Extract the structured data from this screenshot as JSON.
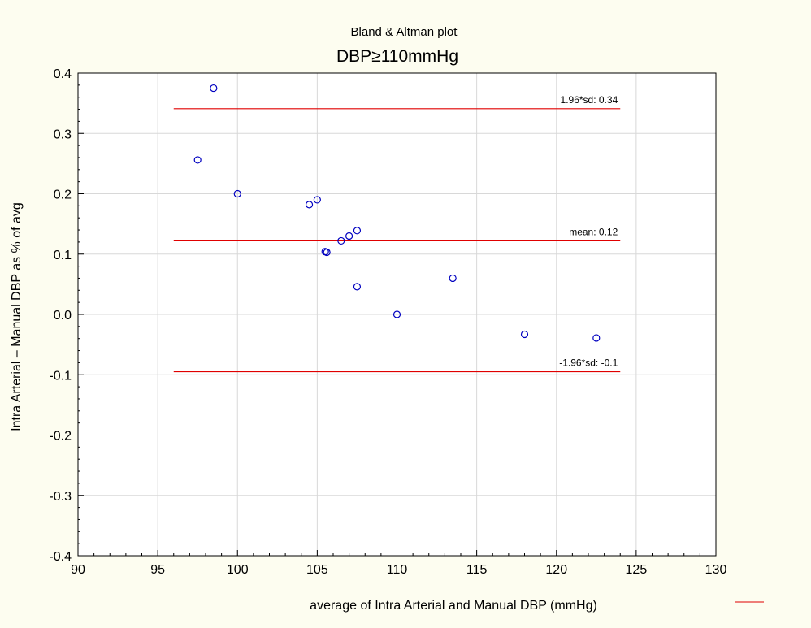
{
  "chart_data": {
    "type": "scatter",
    "title": "Bland & Altman plot",
    "subtitle": "DBP≥110mmHg",
    "xlabel": "average of Intra Arterial and Manual DBP (mmHg)",
    "ylabel": "Intra Arterial – Manual DBP as % of avg",
    "xlim": [
      90,
      130
    ],
    "ylim": [
      -0.4,
      0.4
    ],
    "xticks": [
      "90",
      "95",
      "100",
      "105",
      "110",
      "115",
      "120",
      "125",
      "130"
    ],
    "yticks": [
      "0.4",
      "0.3",
      "0.2",
      "0.1",
      "0.0",
      "-0.1",
      "-0.2",
      "-0.3",
      "-0.4"
    ],
    "grid": true,
    "points": [
      {
        "x": 97.5,
        "y": 0.256
      },
      {
        "x": 98.5,
        "y": 0.375
      },
      {
        "x": 100.0,
        "y": 0.2
      },
      {
        "x": 104.5,
        "y": 0.182
      },
      {
        "x": 105.0,
        "y": 0.19
      },
      {
        "x": 105.5,
        "y": 0.104
      },
      {
        "x": 105.6,
        "y": 0.103
      },
      {
        "x": 106.5,
        "y": 0.122
      },
      {
        "x": 107.0,
        "y": 0.13
      },
      {
        "x": 107.5,
        "y": 0.139
      },
      {
        "x": 107.5,
        "y": 0.046
      },
      {
        "x": 110.0,
        "y": 0.0
      },
      {
        "x": 113.5,
        "y": 0.06
      },
      {
        "x": 118.0,
        "y": -0.033
      },
      {
        "x": 122.5,
        "y": -0.039
      }
    ],
    "reference_lines": [
      {
        "label": "1.96*sd: 0.34",
        "y": 0.341,
        "x_start": 96,
        "x_end": 124
      },
      {
        "label": "mean: 0.12",
        "y": 0.122,
        "x_start": 96,
        "x_end": 124
      },
      {
        "label": "-1.96*sd: -0.1",
        "y": -0.095,
        "x_start": 96,
        "x_end": 124
      }
    ],
    "colors": {
      "points": "#0000c0",
      "lines": "#e00000",
      "grid": "#d8d8d8",
      "background": "#fdfdf0"
    }
  }
}
